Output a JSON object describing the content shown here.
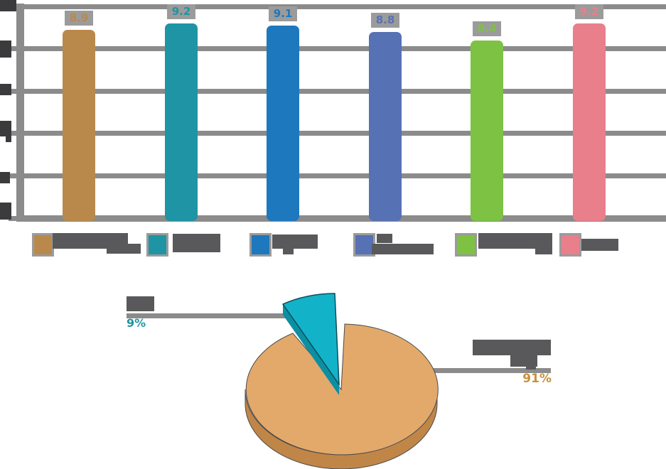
{
  "page": {
    "background": "#ffffff"
  },
  "bar_chart": {
    "axis_color": "#8b8b8b",
    "tick_label_color": "#3b3b3d",
    "value_box_bg": "#9b9b9b",
    "y_axis_labels_redacted": true
  },
  "legend": {
    "swatch_border_color": "#9b9b9b",
    "text_block_color": "#59595b",
    "labels_redacted": true,
    "items": [
      {
        "color": "#b9894c",
        "label": "",
        "label_legible": false
      },
      {
        "color": "#1f94a4",
        "label": "",
        "label_legible": false
      },
      {
        "color": "#1e78bd",
        "label": "",
        "label_legible": false
      },
      {
        "color": "#5671b4",
        "label": "",
        "label_legible": false
      },
      {
        "color": "#7dc242",
        "label": "",
        "label_legible": false
      },
      {
        "color": "#e87f8b",
        "label": "",
        "label_legible": false
      }
    ]
  },
  "pie_chart": {
    "leader_line_color": "#8b8b8b",
    "callout_text_color": "#59595b",
    "labels_redacted": true,
    "slices": [
      {
        "pct_label": "91%",
        "pct_label_color": "#c9913e",
        "top_color": "#e2a96b",
        "side_color": "#c08648",
        "label_legible": false
      },
      {
        "pct_label": "9%",
        "pct_label_color": "#1f94a4",
        "top_color": "#12b3c9",
        "side_color": "#0c8fa3",
        "label_legible": false
      }
    ]
  },
  "chart_data": [
    {
      "type": "bar",
      "categories": [
        "",
        "",
        "",
        "",
        "",
        ""
      ],
      "categories_note": "legend/category labels are rendered as illegible redacted gray blocks in the image",
      "values": [
        8.9,
        9.2,
        9.1,
        8.8,
        8.4,
        9.2
      ],
      "data_labels": [
        "8.9",
        "9.2",
        "9.1",
        "8.8",
        "8.4",
        "9.2"
      ],
      "colors": [
        "#b9894c",
        "#1f94a4",
        "#1e78bd",
        "#5671b4",
        "#7dc242",
        "#e87f8b"
      ],
      "title": "",
      "xlabel": "",
      "ylabel": "",
      "ylim": [
        0,
        10
      ],
      "gridline_values": [
        10,
        8,
        6,
        4,
        2,
        0
      ],
      "grid": true,
      "legend_position": "bottom"
    },
    {
      "type": "pie",
      "labels": [
        "",
        ""
      ],
      "labels_note": "callout labels are rendered as illegible redacted gray blocks in the image",
      "values": [
        91,
        9
      ],
      "unit": "%",
      "data_labels": [
        "91%",
        "9%"
      ],
      "colors": [
        "#e2a96b",
        "#12b3c9"
      ],
      "style": "3d pie, small slice exploded toward upper-left",
      "legend_position": "none"
    }
  ]
}
